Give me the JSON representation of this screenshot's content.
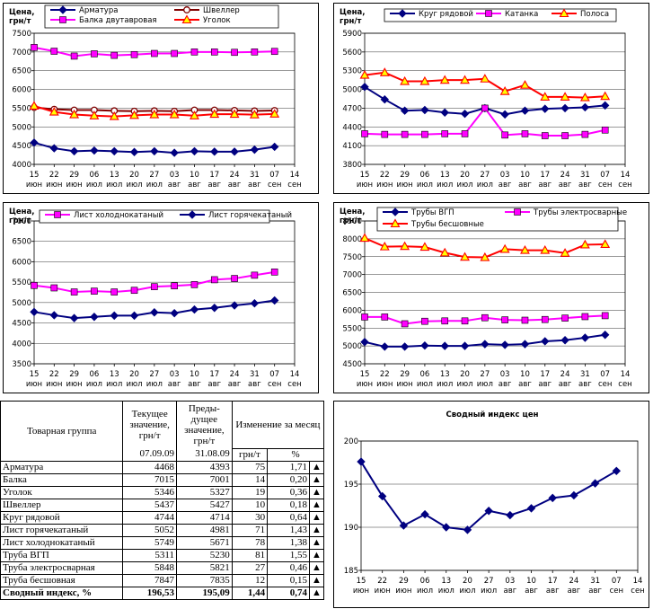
{
  "x_ticks_top": [
    "15",
    "22",
    "29",
    "06",
    "13",
    "20",
    "27",
    "03",
    "10",
    "17",
    "24",
    "31",
    "07",
    "14"
  ],
  "x_ticks_bottom": [
    "июн",
    "июн",
    "июн",
    "июл",
    "июл",
    "июл",
    "июл",
    "авг",
    "авг",
    "авг",
    "авг",
    "авг",
    "сен",
    "сен"
  ],
  "y_unit": "Цена, грн/т",
  "chart_data": [
    {
      "type": "line",
      "panel": "p1",
      "ylim": [
        4000,
        7500
      ],
      "yticks": [
        4000,
        4500,
        5000,
        5500,
        6000,
        6500,
        7000,
        7500
      ],
      "series": [
        {
          "name": "Арматура",
          "color": "#000080",
          "marker": "diamond",
          "values": [
            4580,
            4430,
            4350,
            4370,
            4350,
            4330,
            4350,
            4310,
            4350,
            4340,
            4340,
            4393,
            4468
          ]
        },
        {
          "name": "Швеллер",
          "color": "#800000",
          "marker": "circle",
          "values": [
            5520,
            5470,
            5450,
            5450,
            5430,
            5420,
            5430,
            5420,
            5450,
            5450,
            5440,
            5427,
            5437
          ]
        },
        {
          "name": "Балка двутавровая",
          "color": "#ff00ff",
          "marker": "square",
          "values": [
            7120,
            7020,
            6890,
            6950,
            6910,
            6930,
            6960,
            6960,
            7000,
            7000,
            6990,
            7001,
            7015
          ]
        },
        {
          "name": "Уголок",
          "color": "#ff0000",
          "marker": "triangle",
          "values": [
            5560,
            5400,
            5330,
            5300,
            5280,
            5310,
            5330,
            5330,
            5300,
            5340,
            5340,
            5327,
            5346
          ]
        }
      ]
    },
    {
      "type": "line",
      "panel": "p2",
      "ylim": [
        3800,
        5900
      ],
      "yticks": [
        3800,
        4100,
        4400,
        4700,
        5000,
        5300,
        5600,
        5900
      ],
      "series": [
        {
          "name": "Круг рядовой",
          "color": "#000080",
          "marker": "diamond",
          "values": [
            5040,
            4840,
            4660,
            4670,
            4630,
            4610,
            4700,
            4600,
            4660,
            4690,
            4700,
            4714,
            4744
          ]
        },
        {
          "name": "Катанка",
          "color": "#ff00ff",
          "marker": "square",
          "values": [
            4290,
            4280,
            4280,
            4280,
            4290,
            4290,
            4700,
            4270,
            4290,
            4260,
            4260,
            4280,
            4350
          ]
        },
        {
          "name": "Полоса",
          "color": "#ff0000",
          "marker": "triangle",
          "values": [
            5230,
            5270,
            5130,
            5130,
            5150,
            5150,
            5170,
            4970,
            5070,
            4880,
            4880,
            4870,
            4890
          ]
        }
      ]
    },
    {
      "type": "line",
      "panel": "p3",
      "ylim": [
        3500,
        7000
      ],
      "yticks": [
        3500,
        4000,
        4500,
        5000,
        5500,
        6000,
        6500,
        7000
      ],
      "series": [
        {
          "name": "Лист холоднокатаный",
          "color": "#ff00ff",
          "marker": "square",
          "values": [
            5420,
            5360,
            5260,
            5280,
            5260,
            5300,
            5390,
            5410,
            5440,
            5560,
            5590,
            5671,
            5749
          ]
        },
        {
          "name": "Лист горячекатаный",
          "color": "#000080",
          "marker": "diamond",
          "values": [
            4770,
            4690,
            4620,
            4650,
            4680,
            4680,
            4760,
            4740,
            4830,
            4870,
            4930,
            4981,
            5052
          ]
        }
      ]
    },
    {
      "type": "line",
      "panel": "p4",
      "ylim": [
        4500,
        8500
      ],
      "yticks": [
        4500,
        5000,
        5500,
        6000,
        6500,
        7000,
        7500,
        8000,
        8500
      ],
      "series": [
        {
          "name": "Трубы ВГП",
          "color": "#000080",
          "marker": "diamond",
          "values": [
            5110,
            4980,
            4980,
            5010,
            5000,
            5000,
            5050,
            5030,
            5050,
            5130,
            5160,
            5230,
            5311
          ]
        },
        {
          "name": "Трубы электросварные",
          "color": "#ff00ff",
          "marker": "square",
          "values": [
            5810,
            5810,
            5620,
            5690,
            5700,
            5700,
            5790,
            5730,
            5720,
            5740,
            5780,
            5821,
            5848
          ]
        },
        {
          "name": "Трубы бесшовные",
          "color": "#ff0000",
          "marker": "triangle",
          "values": [
            8020,
            7780,
            7790,
            7770,
            7610,
            7490,
            7480,
            7710,
            7680,
            7680,
            7600,
            7835,
            7847
          ]
        }
      ]
    },
    {
      "type": "line",
      "panel": "p5",
      "title": "Сводный индекс цен",
      "ylim": [
        185,
        200
      ],
      "yticks": [
        185,
        190,
        195,
        200
      ],
      "series": [
        {
          "name": "Сводный индекс",
          "color": "#000080",
          "marker": "diamond",
          "values": [
            197.6,
            193.6,
            190.2,
            191.5,
            190.0,
            189.7,
            191.9,
            191.4,
            192.2,
            193.4,
            193.7,
            195.09,
            196.53
          ]
        }
      ]
    }
  ],
  "table": {
    "header_group": "Товарная группа",
    "header_current": "Текущее значение, грн/т",
    "header_prev": "Преды-дущее значение, грн/т",
    "header_change": "Изменение за месяц",
    "date_current": "07.09.09",
    "date_prev": "31.08.09",
    "unit_abs": "грн/т",
    "unit_pct": "%",
    "trend_symbol": "▲",
    "rows": [
      {
        "name": "Арматура",
        "cur": "4468",
        "prev": "4393",
        "abs": "75",
        "pct": "1,71"
      },
      {
        "name": "Балка",
        "cur": "7015",
        "prev": "7001",
        "abs": "14",
        "pct": "0,20"
      },
      {
        "name": "Уголок",
        "cur": "5346",
        "prev": "5327",
        "abs": "19",
        "pct": "0,36"
      },
      {
        "name": "Швеллер",
        "cur": "5437",
        "prev": "5427",
        "abs": "10",
        "pct": "0,18"
      },
      {
        "name": "Круг рядовой",
        "cur": "4744",
        "prev": "4714",
        "abs": "30",
        "pct": "0,64"
      },
      {
        "name": "Лист горячекатаный",
        "cur": "5052",
        "prev": "4981",
        "abs": "71",
        "pct": "1,43"
      },
      {
        "name": "Лист холоднокатаный",
        "cur": "5749",
        "prev": "5671",
        "abs": "78",
        "pct": "1,38"
      },
      {
        "name": "Труба ВГП",
        "cur": "5311",
        "prev": "5230",
        "abs": "81",
        "pct": "1,55"
      },
      {
        "name": "Труба электросварная",
        "cur": "5848",
        "prev": "5821",
        "abs": "27",
        "pct": "0,46"
      },
      {
        "name": "Труба бесшовная",
        "cur": "7847",
        "prev": "7835",
        "abs": "12",
        "pct": "0,15"
      }
    ],
    "total": {
      "name": "Сводный индекс, %",
      "cur": "196,53",
      "prev": "195,09",
      "abs": "1,44",
      "pct": "0,74"
    }
  }
}
